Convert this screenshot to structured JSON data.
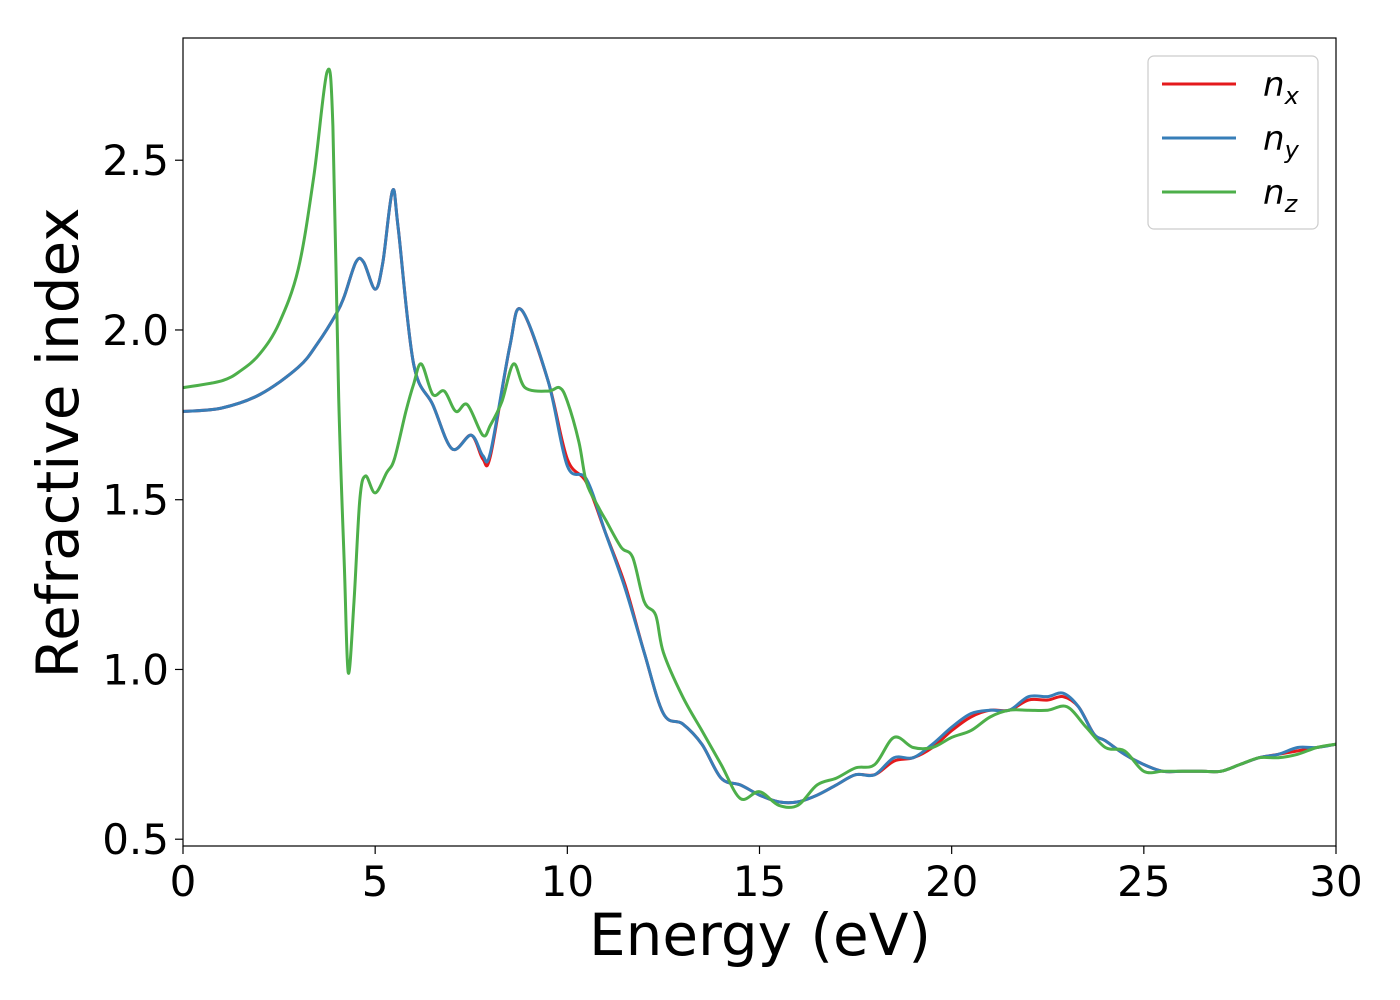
{
  "chart_data": {
    "type": "line",
    "title": "",
    "xlabel": "Energy (eV)",
    "ylabel": "Refractive index",
    "xlim": [
      0,
      30
    ],
    "ylim": [
      0.48,
      2.86
    ],
    "xticks": [
      0,
      5,
      10,
      15,
      20,
      25,
      30
    ],
    "xtick_labels": [
      "0",
      "5",
      "10",
      "15",
      "20",
      "25",
      "30"
    ],
    "yticks": [
      0.5,
      1.0,
      1.5,
      2.0,
      2.5
    ],
    "ytick_labels": [
      "0.5",
      "1.0",
      "1.5",
      "2.0",
      "2.5"
    ],
    "grid": false,
    "legend_position": "top-right",
    "series": [
      {
        "name": "n",
        "subscript": "x",
        "color": "#e41a1c",
        "points": [
          [
            0,
            1.76
          ],
          [
            1,
            1.77
          ],
          [
            2,
            1.81
          ],
          [
            3,
            1.89
          ],
          [
            3.5,
            1.96
          ],
          [
            4,
            2.05
          ],
          [
            4.2,
            2.1
          ],
          [
            4.5,
            2.2
          ],
          [
            4.7,
            2.2
          ],
          [
            5,
            2.12
          ],
          [
            5.2,
            2.2
          ],
          [
            5.45,
            2.41
          ],
          [
            5.6,
            2.3
          ],
          [
            6,
            1.9
          ],
          [
            6.5,
            1.78
          ],
          [
            7,
            1.65
          ],
          [
            7.5,
            1.69
          ],
          [
            7.8,
            1.62
          ],
          [
            8,
            1.63
          ],
          [
            8.5,
            1.95
          ],
          [
            8.8,
            2.06
          ],
          [
            9.5,
            1.85
          ],
          [
            10,
            1.62
          ],
          [
            10.5,
            1.55
          ],
          [
            11,
            1.4
          ],
          [
            11.5,
            1.25
          ],
          [
            12,
            1.05
          ],
          [
            12.5,
            0.87
          ],
          [
            13,
            0.84
          ],
          [
            13.5,
            0.78
          ],
          [
            14,
            0.68
          ],
          [
            14.5,
            0.66
          ],
          [
            15,
            0.63
          ],
          [
            15.5,
            0.61
          ],
          [
            16,
            0.61
          ],
          [
            16.5,
            0.63
          ],
          [
            17,
            0.66
          ],
          [
            17.5,
            0.69
          ],
          [
            18,
            0.69
          ],
          [
            18.5,
            0.73
          ],
          [
            19,
            0.74
          ],
          [
            19.5,
            0.77
          ],
          [
            20,
            0.82
          ],
          [
            20.5,
            0.86
          ],
          [
            21,
            0.88
          ],
          [
            21.5,
            0.88
          ],
          [
            22,
            0.91
          ],
          [
            22.5,
            0.91
          ],
          [
            22.9,
            0.92
          ],
          [
            23.3,
            0.89
          ],
          [
            23.7,
            0.81
          ],
          [
            24,
            0.79
          ],
          [
            24.5,
            0.75
          ],
          [
            25,
            0.72
          ],
          [
            25.5,
            0.7
          ],
          [
            26,
            0.7
          ],
          [
            26.5,
            0.7
          ],
          [
            27,
            0.7
          ],
          [
            27.5,
            0.72
          ],
          [
            28,
            0.74
          ],
          [
            28.5,
            0.75
          ],
          [
            29,
            0.76
          ],
          [
            29.5,
            0.77
          ],
          [
            30,
            0.78
          ]
        ]
      },
      {
        "name": "n",
        "subscript": "y",
        "color": "#377eb8",
        "points": [
          [
            0,
            1.76
          ],
          [
            1,
            1.77
          ],
          [
            2,
            1.81
          ],
          [
            3,
            1.89
          ],
          [
            3.5,
            1.96
          ],
          [
            4,
            2.05
          ],
          [
            4.2,
            2.1
          ],
          [
            4.5,
            2.2
          ],
          [
            4.7,
            2.2
          ],
          [
            5,
            2.12
          ],
          [
            5.2,
            2.2
          ],
          [
            5.45,
            2.41
          ],
          [
            5.6,
            2.3
          ],
          [
            6,
            1.9
          ],
          [
            6.5,
            1.78
          ],
          [
            7,
            1.65
          ],
          [
            7.5,
            1.69
          ],
          [
            7.8,
            1.63
          ],
          [
            8,
            1.64
          ],
          [
            8.5,
            1.95
          ],
          [
            8.8,
            2.06
          ],
          [
            9.5,
            1.85
          ],
          [
            10,
            1.6
          ],
          [
            10.5,
            1.56
          ],
          [
            11,
            1.4
          ],
          [
            11.5,
            1.24
          ],
          [
            12,
            1.05
          ],
          [
            12.5,
            0.87
          ],
          [
            13,
            0.84
          ],
          [
            13.5,
            0.78
          ],
          [
            14,
            0.68
          ],
          [
            14.5,
            0.66
          ],
          [
            15,
            0.63
          ],
          [
            15.5,
            0.61
          ],
          [
            16,
            0.61
          ],
          [
            16.5,
            0.63
          ],
          [
            17,
            0.66
          ],
          [
            17.5,
            0.69
          ],
          [
            18,
            0.69
          ],
          [
            18.5,
            0.74
          ],
          [
            19,
            0.74
          ],
          [
            19.5,
            0.78
          ],
          [
            20,
            0.83
          ],
          [
            20.5,
            0.87
          ],
          [
            21,
            0.88
          ],
          [
            21.5,
            0.88
          ],
          [
            22,
            0.92
          ],
          [
            22.5,
            0.92
          ],
          [
            22.9,
            0.93
          ],
          [
            23.3,
            0.89
          ],
          [
            23.7,
            0.81
          ],
          [
            24,
            0.79
          ],
          [
            24.5,
            0.75
          ],
          [
            25,
            0.72
          ],
          [
            25.5,
            0.7
          ],
          [
            26,
            0.7
          ],
          [
            26.5,
            0.7
          ],
          [
            27,
            0.7
          ],
          [
            27.5,
            0.72
          ],
          [
            28,
            0.74
          ],
          [
            28.5,
            0.75
          ],
          [
            29,
            0.77
          ],
          [
            29.5,
            0.77
          ],
          [
            30,
            0.78
          ]
        ]
      },
      {
        "name": "n",
        "subscript": "z",
        "color": "#4daf4a",
        "points": [
          [
            0,
            1.83
          ],
          [
            1,
            1.85
          ],
          [
            1.5,
            1.88
          ],
          [
            2,
            1.93
          ],
          [
            2.5,
            2.02
          ],
          [
            3,
            2.18
          ],
          [
            3.4,
            2.45
          ],
          [
            3.75,
            2.76
          ],
          [
            3.9,
            2.6
          ],
          [
            4.05,
            1.8
          ],
          [
            4.2,
            1.3
          ],
          [
            4.3,
            0.99
          ],
          [
            4.45,
            1.2
          ],
          [
            4.6,
            1.5
          ],
          [
            4.75,
            1.57
          ],
          [
            5,
            1.52
          ],
          [
            5.3,
            1.58
          ],
          [
            5.5,
            1.62
          ],
          [
            5.8,
            1.76
          ],
          [
            6,
            1.84
          ],
          [
            6.2,
            1.9
          ],
          [
            6.5,
            1.81
          ],
          [
            6.8,
            1.82
          ],
          [
            7.1,
            1.76
          ],
          [
            7.4,
            1.78
          ],
          [
            7.8,
            1.69
          ],
          [
            8,
            1.72
          ],
          [
            8.3,
            1.79
          ],
          [
            8.6,
            1.9
          ],
          [
            8.9,
            1.83
          ],
          [
            9.5,
            1.82
          ],
          [
            9.8,
            1.83
          ],
          [
            10,
            1.79
          ],
          [
            10.3,
            1.67
          ],
          [
            10.5,
            1.55
          ],
          [
            10.8,
            1.48
          ],
          [
            11,
            1.44
          ],
          [
            11.4,
            1.36
          ],
          [
            11.7,
            1.33
          ],
          [
            12,
            1.2
          ],
          [
            12.3,
            1.16
          ],
          [
            12.5,
            1.05
          ],
          [
            13,
            0.92
          ],
          [
            13.5,
            0.82
          ],
          [
            14,
            0.72
          ],
          [
            14.5,
            0.62
          ],
          [
            15,
            0.64
          ],
          [
            15.5,
            0.6
          ],
          [
            16,
            0.6
          ],
          [
            16.5,
            0.66
          ],
          [
            17,
            0.68
          ],
          [
            17.5,
            0.71
          ],
          [
            18,
            0.72
          ],
          [
            18.5,
            0.8
          ],
          [
            19,
            0.77
          ],
          [
            19.5,
            0.77
          ],
          [
            20,
            0.8
          ],
          [
            20.5,
            0.82
          ],
          [
            21,
            0.86
          ],
          [
            21.5,
            0.88
          ],
          [
            22,
            0.88
          ],
          [
            22.5,
            0.88
          ],
          [
            23,
            0.89
          ],
          [
            23.5,
            0.83
          ],
          [
            24,
            0.77
          ],
          [
            24.5,
            0.76
          ],
          [
            25,
            0.7
          ],
          [
            25.5,
            0.7
          ],
          [
            26,
            0.7
          ],
          [
            26.5,
            0.7
          ],
          [
            27,
            0.7
          ],
          [
            27.5,
            0.72
          ],
          [
            28,
            0.74
          ],
          [
            28.5,
            0.74
          ],
          [
            29,
            0.75
          ],
          [
            29.5,
            0.77
          ],
          [
            30,
            0.78
          ]
        ]
      }
    ]
  }
}
